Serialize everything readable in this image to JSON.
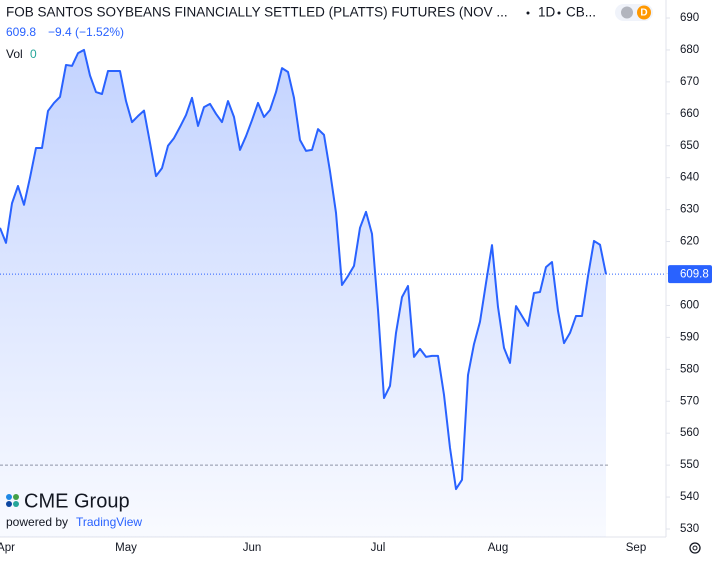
{
  "chart_data": {
    "type": "area",
    "title": "FOB SANTOS SOYBEANS FINANCIALLY SETTLED (PLATTS) FUTURES (NOV ...",
    "interval": "1D",
    "exchange": "CB...",
    "change": "−9.4 (−1.52%)",
    "volume_label": "Vol",
    "volume": 0,
    "badge": "D",
    "brand": "CME Group",
    "powered_by": "powered by",
    "platform": "TradingView",
    "color": "#2962ff",
    "hline": 550,
    "ylim": [
      530,
      690
    ],
    "yticks": [
      530,
      540,
      550,
      560,
      570,
      580,
      590,
      600,
      610,
      620,
      630,
      640,
      650,
      660,
      670,
      680,
      690
    ],
    "categories": [
      null,
      "Apr",
      null,
      null,
      null,
      null,
      null,
      null,
      null,
      null,
      null,
      null,
      null,
      null,
      null,
      null,
      null,
      null,
      null,
      null,
      null,
      "May",
      null,
      null,
      null,
      null,
      null,
      null,
      null,
      null,
      null,
      null,
      null,
      null,
      null,
      null,
      null,
      null,
      null,
      null,
      null,
      null,
      "Jun",
      null,
      null,
      null,
      null,
      null,
      null,
      null,
      null,
      null,
      null,
      null,
      null,
      null,
      null,
      null,
      null,
      null,
      null,
      null,
      null,
      "Jul",
      null,
      null,
      null,
      null,
      null,
      null,
      null,
      null,
      null,
      null,
      null,
      null,
      null,
      null,
      null,
      null,
      null,
      null,
      null,
      "Aug",
      null,
      null,
      null,
      null,
      null,
      null,
      null,
      null,
      null,
      null,
      null,
      null,
      null,
      null,
      null,
      null,
      null,
      null,
      null,
      null,
      null,
      null,
      "Sep"
    ],
    "values": [
      624.3,
      619.6,
      632,
      637.4,
      631.5,
      640,
      649.3,
      649.3,
      660.9,
      663.4,
      665.3,
      675.3,
      675,
      679,
      680,
      672,
      666.8,
      666.2,
      673.4,
      673.4,
      673.4,
      664,
      657.4,
      659.3,
      661,
      650.9,
      640.5,
      643,
      650,
      652.4,
      655.9,
      659.6,
      665,
      656.2,
      662.1,
      663.1,
      660,
      657.4,
      664,
      659,
      648.7,
      653,
      658,
      663.4,
      659,
      661.2,
      666.8,
      674.3,
      673.1,
      665,
      651.8,
      648.4,
      648.7,
      655.2,
      653.4,
      642,
      629,
      606.4,
      609.2,
      612.4,
      624.3,
      629.3,
      622.4,
      598.6,
      571,
      574.8,
      591.4,
      602.6,
      606.1,
      583.9,
      586.4,
      583.9,
      584.2,
      584.2,
      572,
      555.4,
      542.5,
      545.4,
      578.2,
      587.9,
      594.9,
      607,
      618.9,
      599.5,
      586.7,
      582,
      599.8,
      596.7,
      593.6,
      603.9,
      604.2,
      612,
      613.6,
      598.3,
      588.2,
      591.4,
      596.7,
      596.7,
      609.2,
      620.2,
      619,
      609.8,
      null,
      null,
      null,
      null,
      null
    ]
  }
}
